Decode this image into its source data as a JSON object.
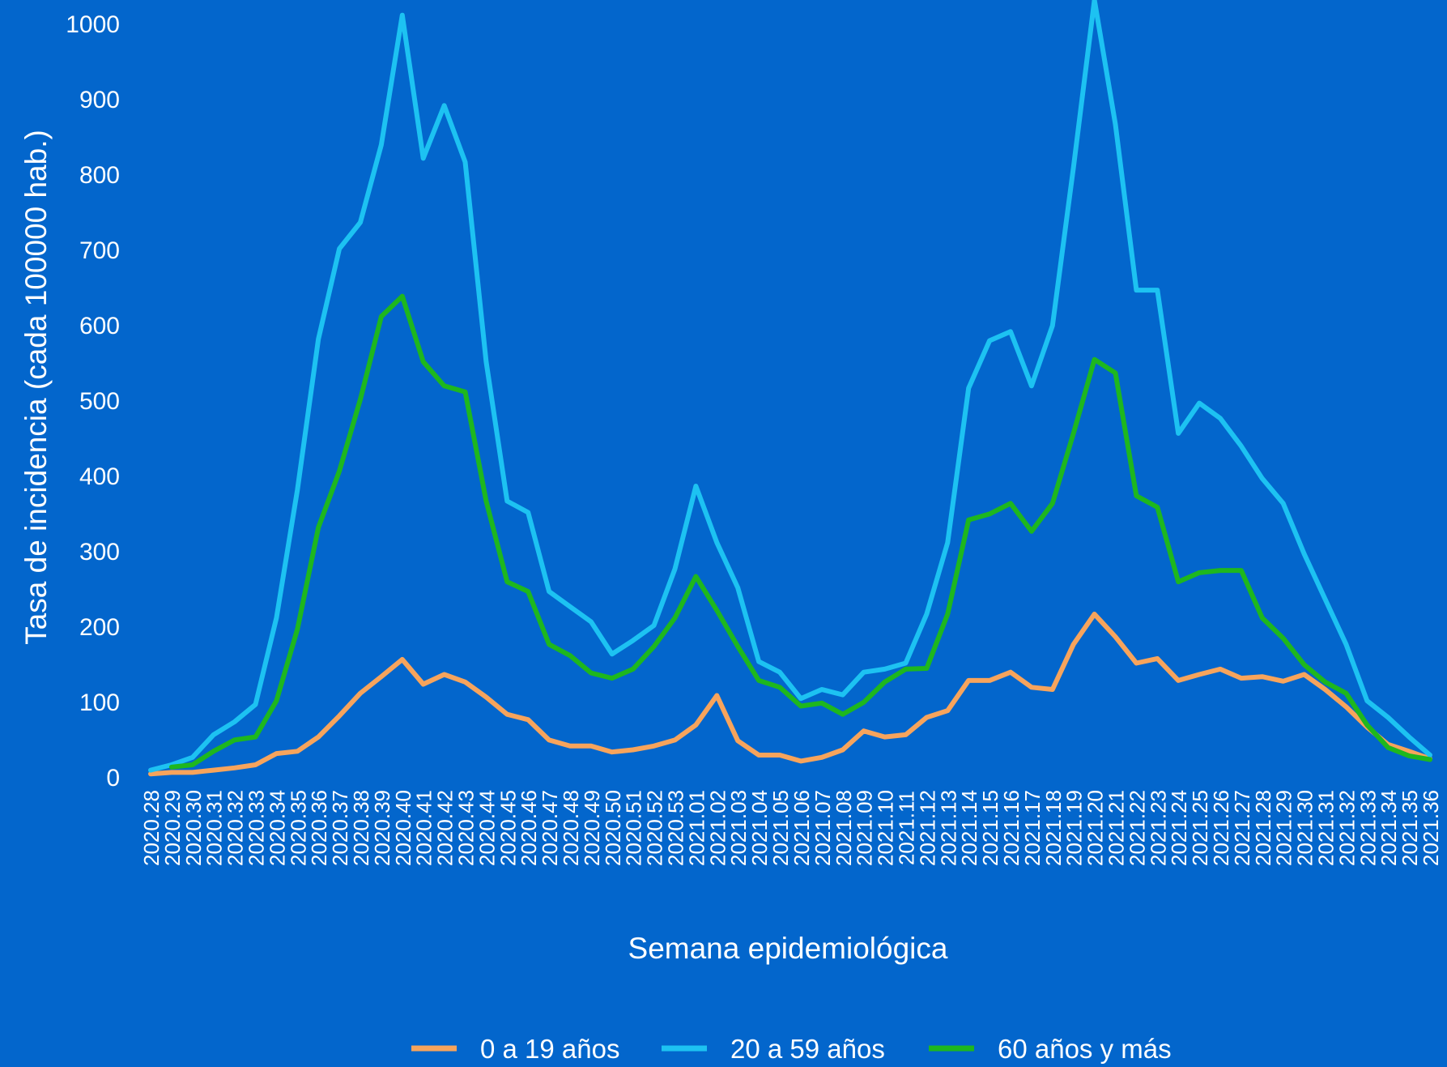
{
  "chart_data": {
    "type": "line",
    "title": "",
    "xlabel": "Semana epidemiológica",
    "ylabel": "Tasa de incidencia (cada 100000 hab.)",
    "ylim": [
      0,
      1000
    ],
    "yticks": [
      0,
      100,
      200,
      300,
      400,
      500,
      600,
      700,
      800,
      900,
      1000
    ],
    "grid": false,
    "legend_position": "bottom",
    "categories": [
      "2020.28",
      "2020.29",
      "2020.30",
      "2020.31",
      "2020.32",
      "2020.33",
      "2020.34",
      "2020.35",
      "2020.36",
      "2020.37",
      "2020.38",
      "2020.39",
      "2020.40",
      "2020.41",
      "2020.42",
      "2020.43",
      "2020.44",
      "2020.45",
      "2020.46",
      "2020.47",
      "2020.48",
      "2020.49",
      "2020.50",
      "2020.51",
      "2020.52",
      "2020.53",
      "2021.01",
      "2021.02",
      "2021.03",
      "2021.04",
      "2021.05",
      "2021.06",
      "2021.07",
      "2021.08",
      "2021.09",
      "2021.10",
      "2021.11",
      "2021.12",
      "2021.13",
      "2021.14",
      "2021.15",
      "2021.16",
      "2021.17",
      "2021.18",
      "2021.19",
      "2021.20",
      "2021.21",
      "2021.22",
      "2021.23",
      "2021.24",
      "2021.25",
      "2021.26",
      "2021.27",
      "2021.28",
      "2021.29",
      "2021.30",
      "2021.31",
      "2021.32",
      "2021.33",
      "2021.34",
      "2021.35",
      "2021.36"
    ],
    "series": [
      {
        "name": "0 a 19 años",
        "color": "#F7A45C",
        "values": [
          3,
          5,
          5,
          8,
          11,
          15,
          30,
          33,
          52,
          80,
          110,
          132,
          155,
          122,
          135,
          125,
          105,
          82,
          75,
          48,
          40,
          40,
          32,
          35,
          40,
          48,
          68,
          107,
          47,
          28,
          28,
          20,
          25,
          35,
          60,
          52,
          55,
          78,
          87,
          127,
          127,
          138,
          118,
          115,
          175,
          215,
          185,
          150,
          156,
          127,
          135,
          142,
          130,
          132,
          126,
          135,
          115,
          92,
          65,
          42,
          33,
          23
        ]
      },
      {
        "name": "20 a 59 años",
        "color": "#1DC2F2",
        "values": [
          8,
          15,
          25,
          55,
          72,
          95,
          210,
          380,
          580,
          700,
          735,
          838,
          1010,
          820,
          890,
          815,
          550,
          365,
          350,
          245,
          225,
          205,
          162,
          180,
          200,
          275,
          385,
          310,
          250,
          152,
          138,
          103,
          115,
          108,
          138,
          142,
          150,
          215,
          310,
          515,
          578,
          590,
          518,
          598,
          808,
          1030,
          865,
          645,
          645,
          455,
          495,
          475,
          438,
          395,
          362,
          295,
          235,
          175,
          100,
          78,
          52,
          28
        ]
      },
      {
        "name": "60 años y más",
        "color": "#1EB71E",
        "values": [
          null,
          12,
          15,
          33,
          48,
          52,
          100,
          195,
          330,
          405,
          500,
          610,
          637,
          550,
          518,
          510,
          365,
          258,
          245,
          175,
          160,
          137,
          130,
          142,
          172,
          210,
          265,
          220,
          172,
          127,
          118,
          93,
          97,
          82,
          98,
          125,
          142,
          143,
          215,
          340,
          348,
          362,
          325,
          362,
          455,
          553,
          535,
          372,
          357,
          258,
          270,
          273,
          273,
          210,
          183,
          148,
          125,
          110,
          68,
          38,
          27,
          22
        ]
      }
    ]
  }
}
